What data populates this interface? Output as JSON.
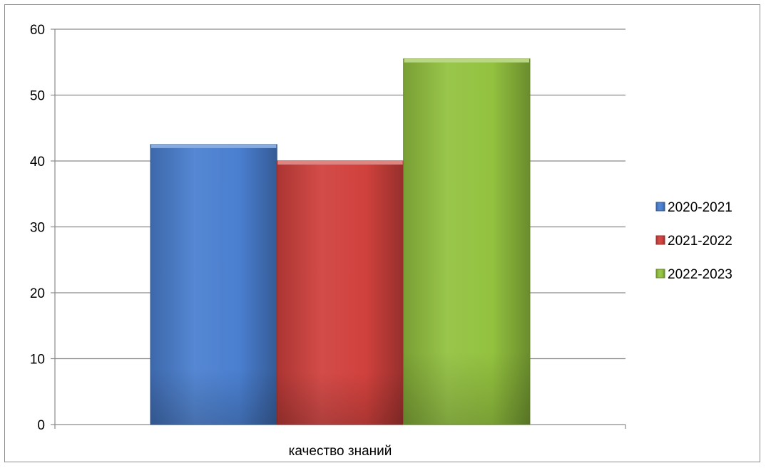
{
  "chart_data": {
    "type": "bar",
    "categories": [
      "качество знаний"
    ],
    "series": [
      {
        "name": "2020-2021",
        "values": [
          42.5
        ],
        "color": "#4a7fd0"
      },
      {
        "name": "2021-2022",
        "values": [
          40
        ],
        "color": "#d0413d"
      },
      {
        "name": "2022-2023",
        "values": [
          55.5
        ],
        "color": "#93c23f"
      }
    ],
    "ylim": [
      0,
      60
    ],
    "yticks": [
      0,
      10,
      20,
      30,
      40,
      50,
      60
    ],
    "grid": true,
    "legend_position": "right",
    "title": "",
    "xlabel": "",
    "ylabel": ""
  }
}
